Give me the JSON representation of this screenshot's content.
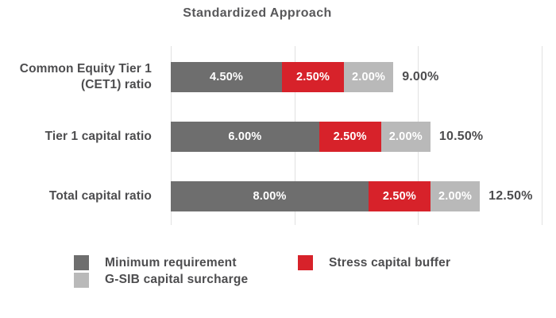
{
  "chart_data": {
    "type": "bar",
    "orientation": "horizontal",
    "title": "Standardized Approach",
    "categories": [
      "Common Equity Tier 1 (CET1) ratio",
      "Tier 1 capital ratio",
      "Total capital ratio"
    ],
    "series": [
      {
        "name": "Minimum requirement",
        "color": "#6e6e6e",
        "text_color": "#ffffff",
        "values": [
          4.5,
          6.0,
          8.0
        ],
        "labels": [
          "4.50%",
          "6.00%",
          "8.00%"
        ]
      },
      {
        "name": "Stress capital buffer",
        "color": "#d7222a",
        "text_color": "#ffffff",
        "values": [
          2.5,
          2.5,
          2.5
        ],
        "labels": [
          "2.50%",
          "2.50%",
          "2.50%"
        ]
      },
      {
        "name": "G-SIB capital surcharge",
        "color": "#b9b9b9",
        "text_color": "#ffffff",
        "values": [
          2.0,
          2.0,
          2.0
        ],
        "labels": [
          "2.00%",
          "2.00%",
          "2.00%"
        ]
      }
    ],
    "totals": [
      "9.00%",
      "10.50%",
      "12.50%"
    ],
    "xlim": [
      0,
      15
    ],
    "gridline_percents": [
      0,
      5,
      10,
      15
    ],
    "grid": true,
    "legend_position": "bottom",
    "colors": {
      "label_text": "#4d4d4f",
      "title_text": "#58585a",
      "grid_line": "#e1e1e1",
      "background": "#ffffff"
    }
  }
}
